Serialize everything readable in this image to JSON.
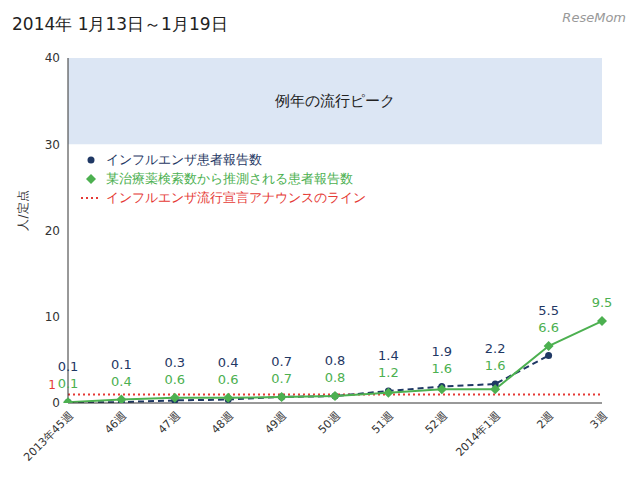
{
  "chart_data": {
    "type": "line",
    "title": "2014年 1月13日～1月19日",
    "watermark": "ReseMom",
    "y_label": "人/定点",
    "categories": [
      "2013年45週",
      "46週",
      "47週",
      "48週",
      "49週",
      "50週",
      "51週",
      "52週",
      "2014年1週",
      "2週",
      "3週"
    ],
    "series": [
      {
        "name": "インフルエンザ患者報告数",
        "color": "#1f3864",
        "values": [
          0.1,
          0.1,
          0.3,
          0.4,
          0.7,
          0.8,
          1.4,
          1.9,
          2.2,
          5.5,
          null
        ],
        "marker": "circle",
        "line_style": "dashed"
      },
      {
        "name": "某治療薬検索数から推測される患者報告数",
        "color": "#4cb050",
        "values": [
          0.1,
          0.4,
          0.6,
          0.6,
          0.7,
          0.8,
          1.2,
          1.6,
          1.6,
          6.6,
          9.5
        ],
        "marker": "diamond",
        "line_style": "solid"
      }
    ],
    "ylim": [
      0,
      40
    ],
    "yticks": [
      0,
      10,
      20,
      30,
      40
    ],
    "grid": false,
    "data_labels": true,
    "legend": "upper left",
    "bands": [
      {
        "range": [
          30,
          40
        ],
        "label": "例年の流行ピーク",
        "color": "#dce6f4"
      }
    ],
    "reference_lines": [
      {
        "value": 1,
        "label": "インフルエンザ流行宣言アナウンスのライン",
        "color": "#e53935",
        "line_style": "dotted"
      }
    ]
  }
}
